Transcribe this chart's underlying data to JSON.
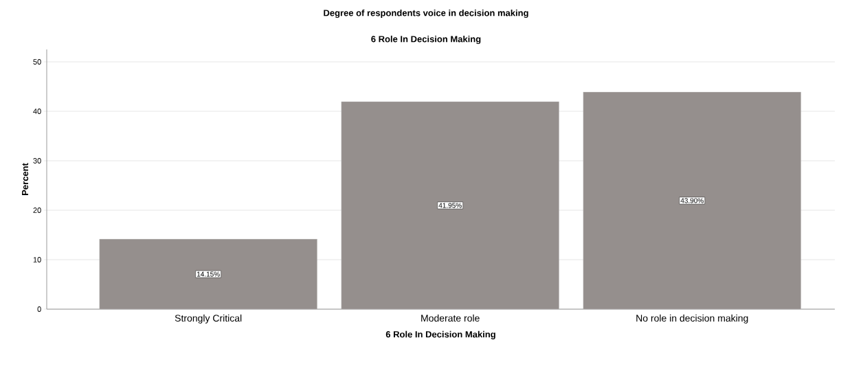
{
  "chart_data": {
    "type": "bar",
    "title": "Degree of respondents voice in decision making",
    "subtitle": "6 Role In Decision Making",
    "xlabel": "6 Role In Decision Making",
    "ylabel": "Percent",
    "categories": [
      "Strongly Critical",
      "Moderate role",
      "No role in decision making"
    ],
    "values": [
      14.15,
      41.95,
      43.9
    ],
    "value_labels": [
      "14.15%",
      "41.95%",
      "43.90%"
    ],
    "color": "#958f8d",
    "ylim": [
      0,
      52.5
    ],
    "yticks": [
      0,
      10,
      20,
      30,
      40,
      50
    ],
    "grid": "y"
  }
}
